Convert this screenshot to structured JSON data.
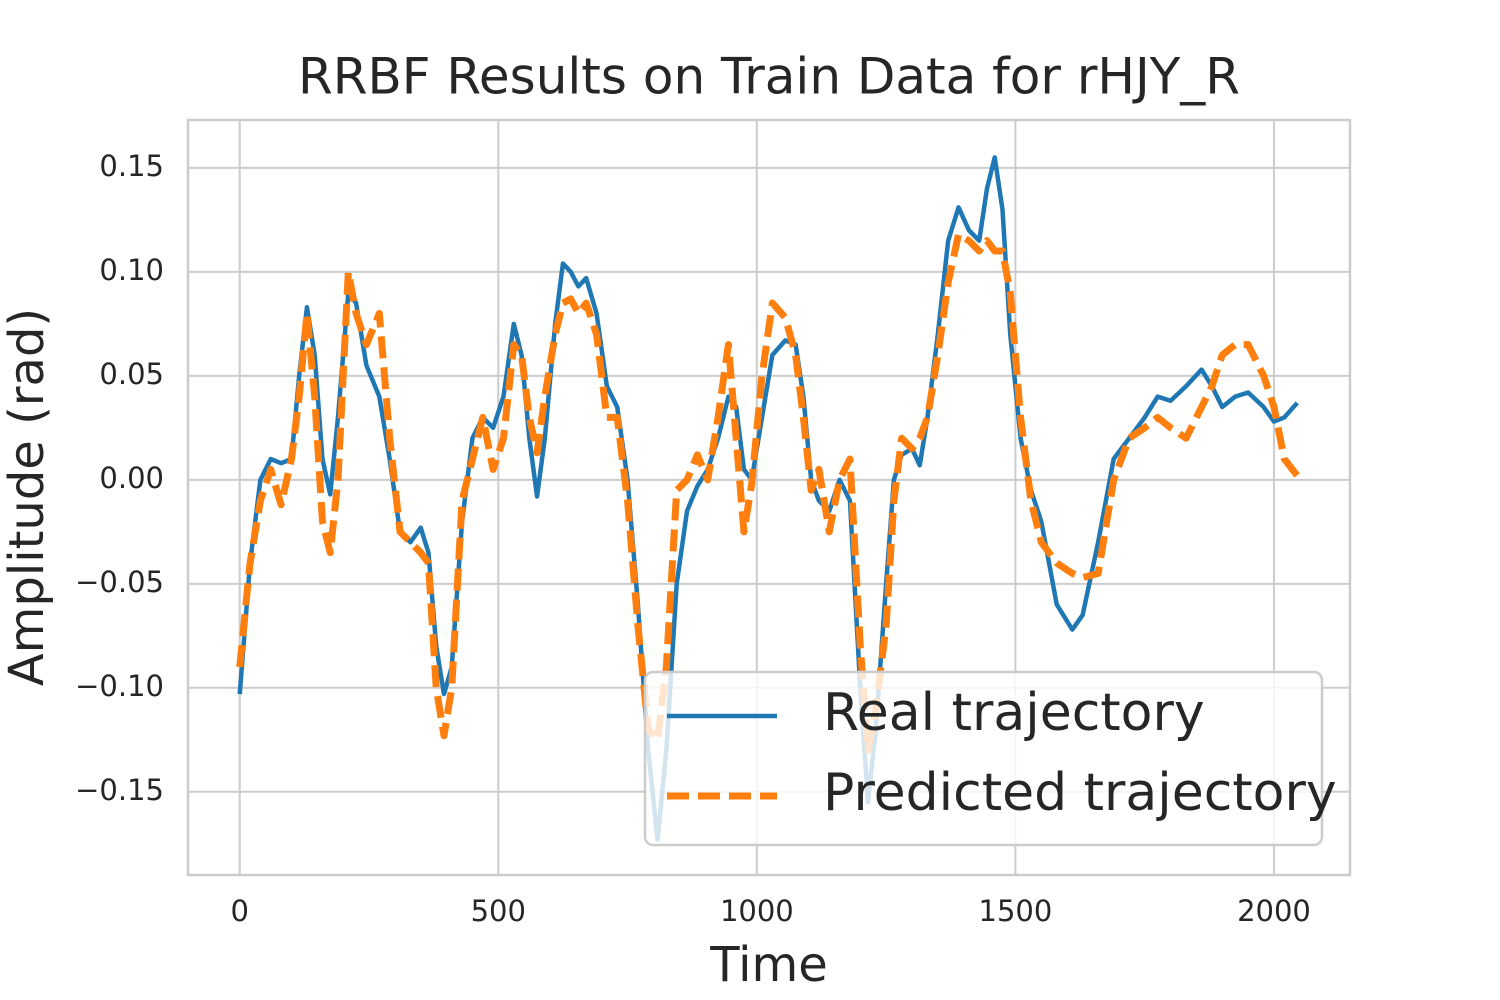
{
  "chart_data": {
    "type": "line",
    "title": "RRBF Results on Train Data for rHJY_R",
    "xlabel": "Time",
    "ylabel": "Amplitude (rad)",
    "x": [
      0,
      20,
      40,
      60,
      80,
      100,
      115,
      130,
      145,
      160,
      175,
      190,
      210,
      225,
      245,
      270,
      290,
      310,
      330,
      350,
      365,
      380,
      395,
      410,
      430,
      450,
      470,
      490,
      510,
      530,
      545,
      560,
      575,
      590,
      610,
      625,
      640,
      655,
      670,
      690,
      710,
      730,
      750,
      770,
      790,
      808,
      825,
      845,
      865,
      885,
      905,
      925,
      945,
      960,
      975,
      990,
      1010,
      1030,
      1055,
      1075,
      1090,
      1105,
      1120,
      1140,
      1160,
      1180,
      1200,
      1215,
      1230,
      1250,
      1265,
      1280,
      1300,
      1315,
      1330,
      1350,
      1370,
      1390,
      1410,
      1430,
      1445,
      1460,
      1475,
      1490,
      1510,
      1530,
      1550,
      1580,
      1610,
      1630,
      1660,
      1690,
      1720,
      1750,
      1775,
      1800,
      1830,
      1860,
      1880,
      1900,
      1925,
      1950,
      1980,
      2000,
      2020,
      2045
    ],
    "series": [
      {
        "name": "Real trajectory",
        "color": "#1f77b4",
        "dash": false,
        "values": [
          -0.103,
          -0.04,
          0.0,
          0.01,
          0.008,
          0.01,
          0.05,
          0.083,
          0.06,
          0.01,
          -0.007,
          0.03,
          0.09,
          0.085,
          0.055,
          0.04,
          0.01,
          -0.025,
          -0.03,
          -0.023,
          -0.035,
          -0.08,
          -0.103,
          -0.09,
          -0.02,
          0.02,
          0.03,
          0.025,
          0.04,
          0.075,
          0.06,
          0.02,
          -0.008,
          0.02,
          0.075,
          0.104,
          0.1,
          0.093,
          0.097,
          0.08,
          0.045,
          0.035,
          0.0,
          -0.06,
          -0.13,
          -0.173,
          -0.13,
          -0.05,
          -0.015,
          -0.003,
          0.005,
          0.02,
          0.04,
          0.035,
          0.005,
          0.0,
          0.03,
          0.06,
          0.067,
          0.065,
          0.04,
          0.0,
          -0.01,
          -0.015,
          0.0,
          -0.01,
          -0.1,
          -0.155,
          -0.12,
          -0.05,
          0.0,
          0.012,
          0.015,
          0.007,
          0.03,
          0.07,
          0.115,
          0.131,
          0.12,
          0.115,
          0.14,
          0.155,
          0.13,
          0.07,
          0.02,
          -0.005,
          -0.02,
          -0.06,
          -0.072,
          -0.065,
          -0.03,
          0.01,
          0.02,
          0.03,
          0.04,
          0.038,
          0.045,
          0.053,
          0.045,
          0.035,
          0.04,
          0.042,
          0.035,
          0.028,
          0.03,
          0.037
        ]
      },
      {
        "name": "Predicted trajectory",
        "color": "#ff7f0e",
        "dash": true,
        "values": [
          -0.09,
          -0.04,
          -0.01,
          0.005,
          -0.012,
          0.01,
          0.04,
          0.08,
          0.04,
          -0.02,
          -0.035,
          0.0,
          0.1,
          0.08,
          0.065,
          0.08,
          0.02,
          -0.025,
          -0.03,
          -0.035,
          -0.04,
          -0.1,
          -0.123,
          -0.1,
          -0.01,
          0.01,
          0.03,
          0.005,
          0.02,
          0.065,
          0.06,
          0.03,
          0.013,
          0.04,
          0.07,
          0.085,
          0.087,
          0.08,
          0.085,
          0.07,
          0.03,
          0.03,
          -0.01,
          -0.07,
          -0.12,
          -0.125,
          -0.09,
          -0.005,
          0.0,
          0.012,
          0.0,
          0.03,
          0.065,
          0.02,
          -0.025,
          -0.002,
          0.05,
          0.085,
          0.078,
          0.06,
          0.03,
          -0.005,
          0.005,
          -0.025,
          0.0,
          0.01,
          -0.08,
          -0.13,
          -0.11,
          -0.07,
          -0.01,
          0.02,
          0.015,
          0.02,
          0.03,
          0.06,
          0.095,
          0.118,
          0.115,
          0.11,
          0.115,
          0.11,
          0.11,
          0.09,
          0.03,
          -0.01,
          -0.03,
          -0.04,
          -0.045,
          -0.047,
          -0.045,
          0.0,
          0.02,
          0.025,
          0.03,
          0.025,
          0.02,
          0.035,
          0.045,
          0.06,
          0.065,
          0.065,
          0.05,
          0.035,
          0.01,
          0.002
        ]
      }
    ],
    "xlim": [
      -100,
      2147
    ],
    "ylim": [
      -0.19,
      0.173
    ],
    "xticks": [
      0,
      500,
      1000,
      1500,
      2000
    ],
    "yticks": [
      {
        "value": -0.15,
        "label": "−0.15"
      },
      {
        "value": -0.1,
        "label": "−0.10"
      },
      {
        "value": -0.05,
        "label": "−0.05"
      },
      {
        "value": 0,
        "label": "0.00"
      },
      0.05,
      {
        "value": 0.1,
        "label": "0.10"
      },
      0.15
    ],
    "grid": true,
    "legend": "lower right"
  }
}
